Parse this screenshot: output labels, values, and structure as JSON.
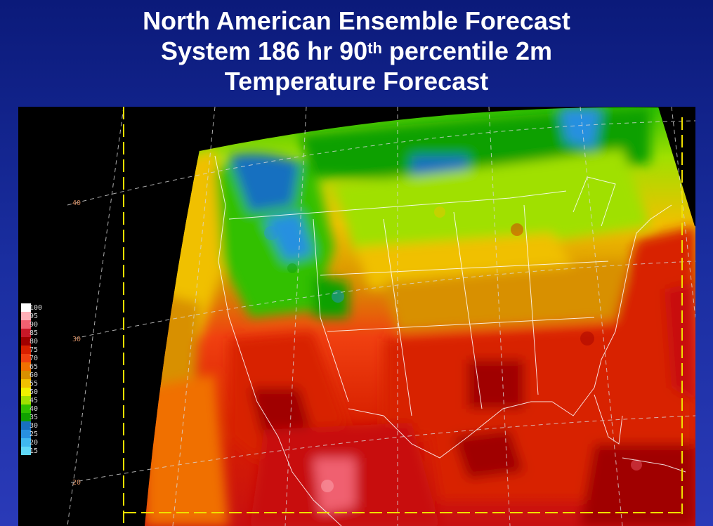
{
  "title": {
    "line1": "North American Ensemble Forecast",
    "line2_pre": "System 186 hr 90",
    "line2_sup": "th",
    "line2_post": " percentile 2m",
    "line3": "Temperature Forecast"
  },
  "legend": {
    "items": [
      {
        "label": "100",
        "color": "#ffffff"
      },
      {
        "label": "95",
        "color": "#ffb0b8"
      },
      {
        "label": "90",
        "color": "#f06070"
      },
      {
        "label": "85",
        "color": "#c81828"
      },
      {
        "label": "80",
        "color": "#a00000"
      },
      {
        "label": "75",
        "color": "#d82000"
      },
      {
        "label": "70",
        "color": "#f04010"
      },
      {
        "label": "65",
        "color": "#f07000"
      },
      {
        "label": "60",
        "color": "#d89000"
      },
      {
        "label": "55",
        "color": "#f0c000"
      },
      {
        "label": "50",
        "color": "#f0f000"
      },
      {
        "label": "45",
        "color": "#a0e000"
      },
      {
        "label": "40",
        "color": "#30c000"
      },
      {
        "label": "35",
        "color": "#10a000"
      },
      {
        "label": "30",
        "color": "#1870c0"
      },
      {
        "label": "25",
        "color": "#2890e0"
      },
      {
        "label": "20",
        "color": "#40b8f0"
      },
      {
        "label": "15",
        "color": "#60d8f8"
      }
    ]
  },
  "lat_labels": [
    "40",
    "30",
    "20"
  ],
  "colors": {
    "frame": "#f0e000",
    "graticule": "#d8d8d8"
  }
}
